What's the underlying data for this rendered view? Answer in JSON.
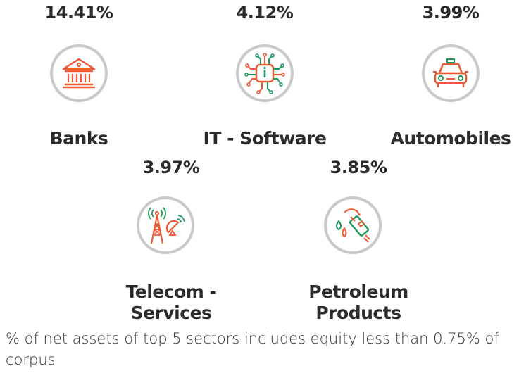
{
  "colors": {
    "circle": "#c9c9c9",
    "red": "#ef5a36",
    "green": "#1f9a5c",
    "text": "#2b2b2b"
  },
  "sectors": [
    {
      "name": "Banks",
      "percent": "14.41%",
      "icon": "bank-building-icon"
    },
    {
      "name": "IT - Software",
      "percent": "4.12%",
      "icon": "circuit-chip-icon"
    },
    {
      "name": "Automobiles",
      "percent": "3.99%",
      "icon": "car-icon"
    },
    {
      "name_line1": "Telecom -",
      "name_line2": "Services",
      "percent": "3.97%",
      "icon": "telecom-tower-icon"
    },
    {
      "name_line1": "Petroleum",
      "name_line2": "Products",
      "percent": "3.85%",
      "icon": "fuel-nozzle-icon"
    }
  ],
  "footnote": "% of net assets of top 5 sectors includes equity less than 0.75% of corpus"
}
